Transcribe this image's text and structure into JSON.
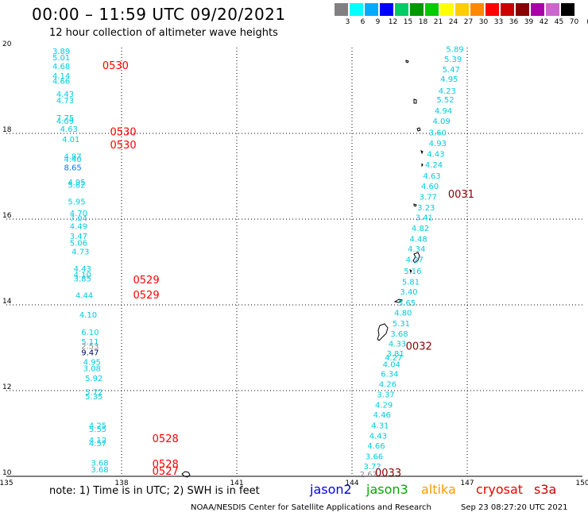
{
  "header": {
    "title": "00:00 – 11:59 UTC 09/20/2021",
    "subtitle": "12 hour collection of altimeter wave heights"
  },
  "legend": {
    "unit": "(ft)",
    "bins": [
      {
        "label": "3",
        "color": "#808080"
      },
      {
        "label": "6",
        "color": "#00ffff"
      },
      {
        "label": "9",
        "color": "#00aaff"
      },
      {
        "label": "12",
        "color": "#0000ff"
      },
      {
        "label": "15",
        "color": "#00cc66"
      },
      {
        "label": "18",
        "color": "#009900"
      },
      {
        "label": "21",
        "color": "#00cc00"
      },
      {
        "label": "24",
        "color": "#ffff00"
      },
      {
        "label": "27",
        "color": "#ffcc00"
      },
      {
        "label": "30",
        "color": "#ff8800"
      },
      {
        "label": "33",
        "color": "#ff0000"
      },
      {
        "label": "36",
        "color": "#cc0000"
      },
      {
        "label": "39",
        "color": "#880000"
      },
      {
        "label": "42",
        "color": "#aa00aa"
      },
      {
        "label": "45",
        "color": "#cc66cc"
      },
      {
        "label": "70",
        "color": "#000000"
      }
    ]
  },
  "map": {
    "lon_range": [
      135,
      150
    ],
    "lat_range": [
      10,
      20
    ],
    "lon_ticks": [
      "135",
      "138",
      "141",
      "144",
      "147",
      "150"
    ],
    "lat_ticks": [
      "20",
      "18",
      "16",
      "14",
      "12",
      "10"
    ],
    "grid_color": "#000000",
    "time_labels": [
      {
        "text": "0530",
        "lon": 137.5,
        "lat": 19.5,
        "color": "#ff0000"
      },
      {
        "text": "0530",
        "lon": 137.7,
        "lat": 17.95,
        "color": "#ff0000"
      },
      {
        "text": "0530",
        "lon": 137.7,
        "lat": 17.65,
        "color": "#ff0000"
      },
      {
        "text": "0529",
        "lon": 138.3,
        "lat": 14.5,
        "color": "#ff0000"
      },
      {
        "text": "0529",
        "lon": 138.3,
        "lat": 14.15,
        "color": "#ff0000"
      },
      {
        "text": "0528",
        "lon": 138.8,
        "lat": 10.8,
        "color": "#ff0000"
      },
      {
        "text": "0528",
        "lon": 138.8,
        "lat": 10.2,
        "color": "#ff0000"
      },
      {
        "text": "0527",
        "lon": 138.8,
        "lat": 10.04,
        "color": "#ff0000"
      },
      {
        "text": "0031",
        "lon": 146.5,
        "lat": 16.5,
        "color": "#880000"
      },
      {
        "text": "0032",
        "lon": 145.4,
        "lat": 12.95,
        "color": "#880000"
      },
      {
        "text": "0033",
        "lon": 144.6,
        "lat": 10.0,
        "color": "#880000"
      }
    ],
    "wave_heights": [
      {
        "v": "3.89",
        "lon": 136.2,
        "lat": 19.85,
        "color": "#00ccdd"
      },
      {
        "v": "5.01",
        "lon": 136.2,
        "lat": 19.7,
        "color": "#00ccdd"
      },
      {
        "v": "4.68",
        "lon": 136.2,
        "lat": 19.5,
        "color": "#00ccdd"
      },
      {
        "v": "4.14",
        "lon": 136.2,
        "lat": 19.28,
        "color": "#00ccdd"
      },
      {
        "v": "4.66",
        "lon": 136.2,
        "lat": 19.16,
        "color": "#00ccdd"
      },
      {
        "v": "4.43",
        "lon": 136.3,
        "lat": 18.85,
        "color": "#00ccdd"
      },
      {
        "v": "4.73",
        "lon": 136.3,
        "lat": 18.7,
        "color": "#00ccdd"
      },
      {
        "v": "7.75",
        "lon": 136.3,
        "lat": 18.3,
        "color": "#00ccdd"
      },
      {
        "v": "4.09",
        "lon": 136.3,
        "lat": 18.22,
        "color": "#00ccdd"
      },
      {
        "v": "4.63",
        "lon": 136.4,
        "lat": 18.04,
        "color": "#00ccdd"
      },
      {
        "v": "4.01",
        "lon": 136.45,
        "lat": 17.8,
        "color": "#00ccdd"
      },
      {
        "v": "4.87",
        "lon": 136.5,
        "lat": 17.4,
        "color": "#00ccdd"
      },
      {
        "v": "4.40",
        "lon": 136.5,
        "lat": 17.33,
        "color": "#00ccdd"
      },
      {
        "v": "8.65",
        "lon": 136.5,
        "lat": 17.14,
        "color": "#0077ff"
      },
      {
        "v": "4.95",
        "lon": 136.6,
        "lat": 16.8,
        "color": "#00ccdd"
      },
      {
        "v": "5.82",
        "lon": 136.6,
        "lat": 16.73,
        "color": "#00ccdd"
      },
      {
        "v": "5.95",
        "lon": 136.6,
        "lat": 16.34,
        "color": "#00ccdd"
      },
      {
        "v": "4.70",
        "lon": 136.65,
        "lat": 16.07,
        "color": "#00ccdd"
      },
      {
        "v": "7.04",
        "lon": 136.65,
        "lat": 15.95,
        "color": "#00ccdd"
      },
      {
        "v": "4.49",
        "lon": 136.65,
        "lat": 15.77,
        "color": "#00ccdd"
      },
      {
        "v": "3.47",
        "lon": 136.65,
        "lat": 15.54,
        "color": "#00ccdd"
      },
      {
        "v": "5.06",
        "lon": 136.65,
        "lat": 15.38,
        "color": "#00ccdd"
      },
      {
        "v": "4.73",
        "lon": 136.7,
        "lat": 15.18,
        "color": "#00ccdd"
      },
      {
        "v": "4.43",
        "lon": 136.75,
        "lat": 14.78,
        "color": "#00ccdd"
      },
      {
        "v": "4.10",
        "lon": 136.75,
        "lat": 14.64,
        "color": "#00ccdd"
      },
      {
        "v": "3.85",
        "lon": 136.75,
        "lat": 14.55,
        "color": "#00ccdd"
      },
      {
        "v": "4.44",
        "lon": 136.8,
        "lat": 14.16,
        "color": "#00ccdd"
      },
      {
        "v": "4.10",
        "lon": 136.9,
        "lat": 13.7,
        "color": "#00ccdd"
      },
      {
        "v": "6.10",
        "lon": 136.95,
        "lat": 13.3,
        "color": "#00ccdd"
      },
      {
        "v": "5.11",
        "lon": 136.95,
        "lat": 13.07,
        "color": "#00ccdd"
      },
      {
        "v": "2.53",
        "lon": 136.95,
        "lat": 12.97,
        "color": "#888888"
      },
      {
        "v": "9.47",
        "lon": 136.95,
        "lat": 12.82,
        "color": "#000066"
      },
      {
        "v": "4.95",
        "lon": 137.0,
        "lat": 12.6,
        "color": "#00ccdd"
      },
      {
        "v": "3.08",
        "lon": 137.0,
        "lat": 12.45,
        "color": "#00ccdd"
      },
      {
        "v": "5.92",
        "lon": 137.05,
        "lat": 12.22,
        "color": "#00ccdd"
      },
      {
        "v": "5.72",
        "lon": 137.05,
        "lat": 11.9,
        "color": "#00ccdd"
      },
      {
        "v": "5.35",
        "lon": 137.05,
        "lat": 11.8,
        "color": "#00ccdd"
      },
      {
        "v": "4.25",
        "lon": 137.15,
        "lat": 11.12,
        "color": "#00ccdd"
      },
      {
        "v": "5.55",
        "lon": 137.15,
        "lat": 11.04,
        "color": "#00ccdd"
      },
      {
        "v": "4.12",
        "lon": 137.15,
        "lat": 10.78,
        "color": "#00ccdd"
      },
      {
        "v": "4.57",
        "lon": 137.15,
        "lat": 10.7,
        "color": "#00ccdd"
      },
      {
        "v": "3.68",
        "lon": 137.2,
        "lat": 10.25,
        "color": "#00ccdd"
      },
      {
        "v": "3.68",
        "lon": 137.2,
        "lat": 10.09,
        "color": "#00ccdd"
      },
      {
        "v": "5.89",
        "lon": 146.45,
        "lat": 19.9,
        "color": "#00ccdd"
      },
      {
        "v": "5.39",
        "lon": 146.4,
        "lat": 19.67,
        "color": "#00ccdd"
      },
      {
        "v": "5.47",
        "lon": 146.35,
        "lat": 19.43,
        "color": "#00ccdd"
      },
      {
        "v": "4.95",
        "lon": 146.3,
        "lat": 19.2,
        "color": "#00ccdd"
      },
      {
        "v": "4.23",
        "lon": 146.25,
        "lat": 18.93,
        "color": "#00ccdd"
      },
      {
        "v": "5.52",
        "lon": 146.2,
        "lat": 18.72,
        "color": "#00ccdd"
      },
      {
        "v": "4.94",
        "lon": 146.15,
        "lat": 18.46,
        "color": "#00ccdd"
      },
      {
        "v": "4.09",
        "lon": 146.1,
        "lat": 18.22,
        "color": "#00ccdd"
      },
      {
        "v": "3.60",
        "lon": 146.0,
        "lat": 17.95,
        "color": "#00ccdd"
      },
      {
        "v": "4.93",
        "lon": 146.0,
        "lat": 17.7,
        "color": "#00ccdd"
      },
      {
        "v": "4.43",
        "lon": 145.95,
        "lat": 17.45,
        "color": "#00ccdd"
      },
      {
        "v": "4.24",
        "lon": 145.9,
        "lat": 17.2,
        "color": "#00ccdd"
      },
      {
        "v": "4.63",
        "lon": 145.85,
        "lat": 16.94,
        "color": "#00ccdd"
      },
      {
        "v": "4.60",
        "lon": 145.8,
        "lat": 16.7,
        "color": "#00ccdd"
      },
      {
        "v": "3.77",
        "lon": 145.75,
        "lat": 16.45,
        "color": "#00ccdd"
      },
      {
        "v": "3.23",
        "lon": 145.7,
        "lat": 16.2,
        "color": "#00ccdd"
      },
      {
        "v": "3.41",
        "lon": 145.65,
        "lat": 15.97,
        "color": "#00ccdd"
      },
      {
        "v": "4.82",
        "lon": 145.55,
        "lat": 15.72,
        "color": "#00ccdd"
      },
      {
        "v": "4.48",
        "lon": 145.5,
        "lat": 15.47,
        "color": "#00ccdd"
      },
      {
        "v": "4.34",
        "lon": 145.45,
        "lat": 15.24,
        "color": "#00ccdd"
      },
      {
        "v": "4.27",
        "lon": 145.4,
        "lat": 14.99,
        "color": "#00ccdd"
      },
      {
        "v": "5.16",
        "lon": 145.35,
        "lat": 14.72,
        "color": "#00ccdd"
      },
      {
        "v": "5.81",
        "lon": 145.3,
        "lat": 14.47,
        "color": "#00ccdd"
      },
      {
        "v": "3.40",
        "lon": 145.25,
        "lat": 14.24,
        "color": "#00ccdd"
      },
      {
        "v": "3.65",
        "lon": 145.2,
        "lat": 13.98,
        "color": "#00ccdd"
      },
      {
        "v": "4.80",
        "lon": 145.1,
        "lat": 13.75,
        "color": "#00ccdd"
      },
      {
        "v": "5.31",
        "lon": 145.05,
        "lat": 13.5,
        "color": "#00ccdd"
      },
      {
        "v": "3.68",
        "lon": 145.0,
        "lat": 13.26,
        "color": "#00ccdd"
      },
      {
        "v": "4.33",
        "lon": 144.95,
        "lat": 13.03,
        "color": "#00ccdd"
      },
      {
        "v": "3.81",
        "lon": 144.9,
        "lat": 12.8,
        "color": "#00ccdd"
      },
      {
        "v": "4.27",
        "lon": 144.85,
        "lat": 12.7,
        "color": "#00ccdd"
      },
      {
        "v": "4.04",
        "lon": 144.8,
        "lat": 12.55,
        "color": "#00ccdd"
      },
      {
        "v": "6.34",
        "lon": 144.75,
        "lat": 12.32,
        "color": "#00ccdd"
      },
      {
        "v": "4.26",
        "lon": 144.7,
        "lat": 12.08,
        "color": "#00ccdd"
      },
      {
        "v": "3.37",
        "lon": 144.65,
        "lat": 11.84,
        "color": "#00ccdd"
      },
      {
        "v": "4.29",
        "lon": 144.6,
        "lat": 11.6,
        "color": "#00ccdd"
      },
      {
        "v": "4.46",
        "lon": 144.55,
        "lat": 11.37,
        "color": "#00ccdd"
      },
      {
        "v": "4.31",
        "lon": 144.5,
        "lat": 11.12,
        "color": "#00ccdd"
      },
      {
        "v": "4.43",
        "lon": 144.45,
        "lat": 10.88,
        "color": "#00ccdd"
      },
      {
        "v": "4.66",
        "lon": 144.4,
        "lat": 10.65,
        "color": "#00ccdd"
      },
      {
        "v": "3.66",
        "lon": 144.35,
        "lat": 10.4,
        "color": "#00ccdd"
      },
      {
        "v": "3.72",
        "lon": 144.3,
        "lat": 10.17,
        "color": "#00ccdd"
      },
      {
        "v": "2.67",
        "lon": 144.2,
        "lat": 9.98,
        "color": "#888888"
      }
    ]
  },
  "footer": {
    "note": "note:  1) Time is in UTC;  2) SWH is in feet",
    "satellites": [
      {
        "name": "jason2",
        "color": "#0000ee"
      },
      {
        "name": "jason3",
        "color": "#00aa00"
      },
      {
        "name": "altika",
        "color": "#ff9900"
      },
      {
        "name": "cryosat",
        "color": "#ee0000"
      },
      {
        "name": "s3a",
        "color": "#cc0000"
      }
    ],
    "credit": "NOAA/NESDIS Center for Satellite Applications and Research",
    "timestamp": "Sep 23 08:27:20 UTC 2021"
  }
}
